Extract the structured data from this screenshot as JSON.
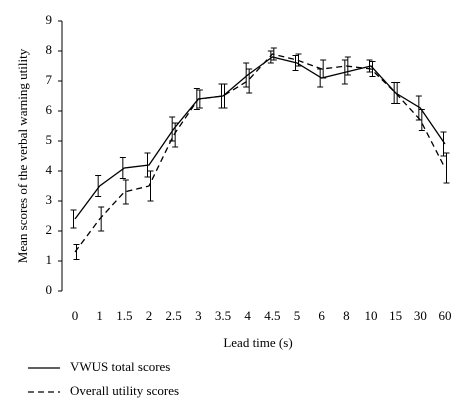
{
  "chart_data": {
    "type": "line",
    "x_label": "Lead time (s)",
    "y_label": "Mean scores of the verbal warning utility",
    "categories": [
      "0",
      "1",
      "1.5",
      "2",
      "2.5",
      "3",
      "3.5",
      "4",
      "4.5",
      "5",
      "6",
      "8",
      "10",
      "15",
      "30",
      "60"
    ],
    "series": [
      {
        "name": "VWUS total scores",
        "color": "#000000",
        "linestyle": "solid",
        "values": [
          2.4,
          3.5,
          4.1,
          4.2,
          5.4,
          6.4,
          6.5,
          7.2,
          7.8,
          7.6,
          7.1,
          7.3,
          7.5,
          6.6,
          6.1,
          4.9
        ],
        "errors": [
          0.3,
          0.35,
          0.35,
          0.4,
          0.4,
          0.35,
          0.4,
          0.4,
          0.2,
          0.25,
          0.3,
          0.4,
          0.2,
          0.35,
          0.4,
          0.4
        ]
      },
      {
        "name": "Overall utility scores",
        "color": "#000000",
        "linestyle": "dashed",
        "values": [
          1.3,
          2.4,
          3.3,
          3.5,
          5.2,
          6.4,
          6.5,
          7.0,
          7.9,
          7.7,
          7.4,
          7.5,
          7.4,
          6.6,
          5.7,
          4.1
        ],
        "errors": [
          0.25,
          0.4,
          0.4,
          0.5,
          0.4,
          0.3,
          0.4,
          0.4,
          0.2,
          0.2,
          0.3,
          0.3,
          0.25,
          0.35,
          0.35,
          0.5
        ]
      }
    ],
    "ylim": [
      0,
      9
    ],
    "yticks": [
      0,
      1,
      2,
      3,
      4,
      5,
      6,
      7,
      8,
      9
    ],
    "grid": false,
    "legend": "bottom-left"
  }
}
